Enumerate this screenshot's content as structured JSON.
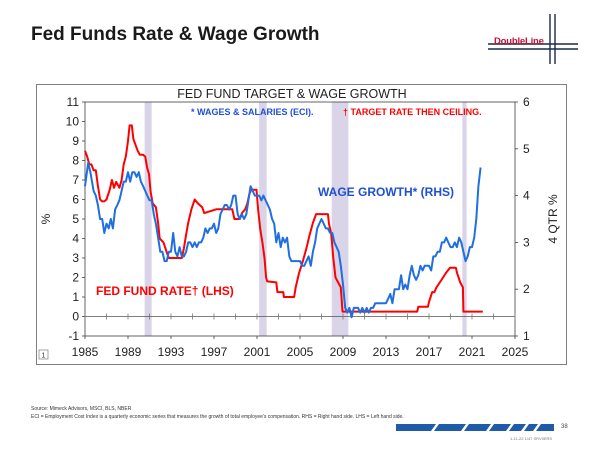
{
  "slide": {
    "title": "Fed Funds Rate & Wage Growth",
    "logo": "DoubleLine",
    "source": "Source: Mimeck Advisors, MSCI, BLS, NBER",
    "note": "ECI = Employment Cost Index is a quarterly economic series that measures the growth of total employee's compensation. RHS = Right hand side. LHS = Left hand side.",
    "page_number": "38",
    "date_code": "1-11-22 1/47 SRVIIERS",
    "box_number": "1"
  },
  "colors": {
    "fed": "#ff0000",
    "wage": "#1f6fe0",
    "recession": "#d9d4e7",
    "logo_red": "#c8102e",
    "footer_blue": "#1f5ba8",
    "text_blue": "#1e4fd6"
  },
  "chart_data": {
    "type": "line",
    "title": "FED FUND TARGET & WAGE GROWTH",
    "subtitle_wages": "* WAGES & SALARIES (ECI).",
    "subtitle_target": "† TARGET RATE THEN CEILING.",
    "ylabel": "%",
    "y2label": "4 QTR %",
    "ylim": [
      -1,
      11
    ],
    "y2lim": [
      1,
      6
    ],
    "xlim": [
      1985,
      2025
    ],
    "x_ticks": [
      "1985",
      "1989",
      "1993",
      "1997",
      "2001",
      "2005",
      "2009",
      "2013",
      "2017",
      "2021",
      "2025"
    ],
    "y_ticks": [
      "-1",
      "0",
      "1",
      "2",
      "3",
      "4",
      "5",
      "6",
      "7",
      "8",
      "9",
      "10",
      "11"
    ],
    "y2_ticks": [
      "1",
      "2",
      "3",
      "4",
      "5",
      "6"
    ],
    "recessions": [
      [
        1990.55,
        1991.2
      ],
      [
        2001.2,
        2001.9
      ],
      [
        2007.95,
        2009.5
      ],
      [
        2020.1,
        2020.5
      ]
    ],
    "series": [
      {
        "name": "FED FUND RATE† (LHS)",
        "axis": "left",
        "points": [
          [
            1985.0,
            8.5
          ],
          [
            1985.2,
            8.2
          ],
          [
            1985.4,
            7.8
          ],
          [
            1985.6,
            7.8
          ],
          [
            1985.8,
            7.5
          ],
          [
            1986.0,
            7.5
          ],
          [
            1986.2,
            6.7
          ],
          [
            1986.4,
            6.0
          ],
          [
            1986.6,
            5.9
          ],
          [
            1986.8,
            5.9
          ],
          [
            1987.0,
            6.0
          ],
          [
            1987.3,
            6.5
          ],
          [
            1987.5,
            7.0
          ],
          [
            1987.7,
            6.6
          ],
          [
            1987.9,
            6.9
          ],
          [
            1988.2,
            6.6
          ],
          [
            1988.4,
            7.0
          ],
          [
            1988.6,
            7.8
          ],
          [
            1988.8,
            8.2
          ],
          [
            1989.0,
            9.0
          ],
          [
            1989.15,
            9.8
          ],
          [
            1989.35,
            9.8
          ],
          [
            1989.5,
            9.1
          ],
          [
            1989.7,
            8.8
          ],
          [
            1989.9,
            8.5
          ],
          [
            1990.1,
            8.3
          ],
          [
            1990.4,
            8.3
          ],
          [
            1990.6,
            8.2
          ],
          [
            1990.8,
            7.6
          ],
          [
            1990.95,
            7.3
          ],
          [
            1991.1,
            6.4
          ],
          [
            1991.3,
            5.8
          ],
          [
            1991.6,
            5.6
          ],
          [
            1991.8,
            4.8
          ],
          [
            1991.95,
            4.0
          ],
          [
            1992.3,
            3.8
          ],
          [
            1992.6,
            3.3
          ],
          [
            1992.8,
            3.0
          ],
          [
            1993.0,
            3.0
          ],
          [
            1994.0,
            3.0
          ],
          [
            1994.2,
            3.5
          ],
          [
            1994.4,
            4.2
          ],
          [
            1994.6,
            4.8
          ],
          [
            1994.9,
            5.5
          ],
          [
            1995.2,
            6.0
          ],
          [
            1995.5,
            5.8
          ],
          [
            1995.9,
            5.6
          ],
          [
            1996.1,
            5.3
          ],
          [
            1997.2,
            5.5
          ],
          [
            1998.7,
            5.5
          ],
          [
            1998.9,
            5.0
          ],
          [
            1999.4,
            5.0
          ],
          [
            1999.6,
            5.3
          ],
          [
            1999.9,
            5.5
          ],
          [
            2000.1,
            5.8
          ],
          [
            2000.3,
            6.3
          ],
          [
            2000.45,
            6.5
          ],
          [
            2000.95,
            6.5
          ],
          [
            2001.1,
            5.5
          ],
          [
            2001.3,
            4.5
          ],
          [
            2001.5,
            3.8
          ],
          [
            2001.7,
            3.0
          ],
          [
            2001.85,
            2.0
          ],
          [
            2001.95,
            1.8
          ],
          [
            2002.8,
            1.75
          ],
          [
            2002.9,
            1.25
          ],
          [
            2003.45,
            1.25
          ],
          [
            2003.5,
            1.0
          ],
          [
            2004.45,
            1.0
          ],
          [
            2004.6,
            1.5
          ],
          [
            2004.9,
            2.2
          ],
          [
            2005.3,
            2.9
          ],
          [
            2005.6,
            3.5
          ],
          [
            2005.9,
            4.2
          ],
          [
            2006.2,
            4.8
          ],
          [
            2006.5,
            5.25
          ],
          [
            2007.6,
            5.25
          ],
          [
            2007.7,
            4.75
          ],
          [
            2007.9,
            4.25
          ],
          [
            2008.1,
            3.0
          ],
          [
            2008.3,
            2.0
          ],
          [
            2008.8,
            1.5
          ],
          [
            2008.95,
            0.25
          ],
          [
            2015.9,
            0.25
          ],
          [
            2016.0,
            0.5
          ],
          [
            2016.9,
            0.5
          ],
          [
            2017.0,
            0.75
          ],
          [
            2017.3,
            1.25
          ],
          [
            2017.5,
            1.25
          ],
          [
            2017.7,
            1.5
          ],
          [
            2018.0,
            1.75
          ],
          [
            2018.3,
            2.0
          ],
          [
            2018.6,
            2.25
          ],
          [
            2018.95,
            2.5
          ],
          [
            2019.5,
            2.5
          ],
          [
            2019.6,
            2.25
          ],
          [
            2019.75,
            2.0
          ],
          [
            2019.9,
            1.75
          ],
          [
            2020.15,
            1.5
          ],
          [
            2020.2,
            0.25
          ],
          [
            2022.0,
            0.25
          ]
        ]
      },
      {
        "name": "WAGE GROWTH* (RHS)",
        "axis": "right",
        "points": [
          [
            1985.0,
            4.2
          ],
          [
            1985.3,
            4.7
          ],
          [
            1985.5,
            4.5
          ],
          [
            1985.8,
            4.1
          ],
          [
            1986.0,
            4.0
          ],
          [
            1986.2,
            3.8
          ],
          [
            1986.4,
            3.5
          ],
          [
            1986.6,
            3.5
          ],
          [
            1986.8,
            3.2
          ],
          [
            1987.0,
            3.4
          ],
          [
            1987.2,
            3.3
          ],
          [
            1987.4,
            3.5
          ],
          [
            1987.6,
            3.3
          ],
          [
            1987.8,
            3.7
          ],
          [
            1988.0,
            3.8
          ],
          [
            1988.2,
            3.9
          ],
          [
            1988.4,
            4.1
          ],
          [
            1988.6,
            4.3
          ],
          [
            1988.8,
            4.3
          ],
          [
            1989.0,
            4.5
          ],
          [
            1989.2,
            4.3
          ],
          [
            1989.4,
            4.5
          ],
          [
            1989.6,
            4.5
          ],
          [
            1989.8,
            4.4
          ],
          [
            1990.0,
            4.5
          ],
          [
            1990.2,
            4.3
          ],
          [
            1990.4,
            4.2
          ],
          [
            1990.6,
            4.1
          ],
          [
            1990.8,
            4.0
          ],
          [
            1991.0,
            3.9
          ],
          [
            1991.2,
            3.9
          ],
          [
            1991.4,
            3.6
          ],
          [
            1991.6,
            3.4
          ],
          [
            1991.8,
            3.1
          ],
          [
            1992.0,
            2.8
          ],
          [
            1992.2,
            2.8
          ],
          [
            1992.4,
            2.6
          ],
          [
            1992.6,
            2.6
          ],
          [
            1992.8,
            2.8
          ],
          [
            1993.0,
            2.8
          ],
          [
            1993.2,
            3.2
          ],
          [
            1993.4,
            2.8
          ],
          [
            1993.6,
            2.7
          ],
          [
            1993.8,
            2.9
          ],
          [
            1994.0,
            2.7
          ],
          [
            1994.2,
            2.7
          ],
          [
            1994.4,
            2.8
          ],
          [
            1994.6,
            3.0
          ],
          [
            1994.8,
            3.0
          ],
          [
            1995.0,
            2.9
          ],
          [
            1995.2,
            3.0
          ],
          [
            1995.4,
            2.9
          ],
          [
            1995.6,
            3.0
          ],
          [
            1995.8,
            3.0
          ],
          [
            1996.0,
            3.1
          ],
          [
            1996.2,
            3.3
          ],
          [
            1996.4,
            3.2
          ],
          [
            1996.6,
            3.3
          ],
          [
            1996.8,
            3.3
          ],
          [
            1997.0,
            3.4
          ],
          [
            1997.2,
            3.2
          ],
          [
            1997.4,
            3.3
          ],
          [
            1997.6,
            3.6
          ],
          [
            1997.8,
            3.7
          ],
          [
            1998.0,
            3.8
          ],
          [
            1998.2,
            3.8
          ],
          [
            1998.4,
            3.7
          ],
          [
            1998.6,
            3.8
          ],
          [
            1998.8,
            4.0
          ],
          [
            1999.0,
            4.0
          ],
          [
            1999.2,
            3.6
          ],
          [
            1999.4,
            3.5
          ],
          [
            1999.6,
            3.6
          ],
          [
            1999.8,
            3.5
          ],
          [
            2000.0,
            3.6
          ],
          [
            2000.2,
            3.9
          ],
          [
            2000.4,
            4.2
          ],
          [
            2000.6,
            4.1
          ],
          [
            2000.8,
            4.0
          ],
          [
            2001.0,
            4.0
          ],
          [
            2001.2,
            4.0
          ],
          [
            2001.4,
            3.9
          ],
          [
            2001.6,
            4.0
          ],
          [
            2001.8,
            3.9
          ],
          [
            2002.0,
            3.8
          ],
          [
            2002.2,
            3.7
          ],
          [
            2002.4,
            3.5
          ],
          [
            2002.6,
            3.4
          ],
          [
            2002.8,
            3.0
          ],
          [
            2003.0,
            3.2
          ],
          [
            2003.2,
            2.9
          ],
          [
            2003.4,
            3.1
          ],
          [
            2003.6,
            3.0
          ],
          [
            2003.8,
            3.1
          ],
          [
            2004.0,
            2.7
          ],
          [
            2004.2,
            2.6
          ],
          [
            2004.4,
            2.6
          ],
          [
            2004.6,
            2.6
          ],
          [
            2004.8,
            2.6
          ],
          [
            2005.0,
            2.6
          ],
          [
            2005.2,
            2.5
          ],
          [
            2005.4,
            2.5
          ],
          [
            2005.6,
            2.6
          ],
          [
            2005.8,
            2.7
          ],
          [
            2006.0,
            2.5
          ],
          [
            2006.2,
            2.8
          ],
          [
            2006.4,
            3.0
          ],
          [
            2006.6,
            3.3
          ],
          [
            2006.8,
            3.4
          ],
          [
            2007.0,
            3.5
          ],
          [
            2007.2,
            3.4
          ],
          [
            2007.4,
            3.3
          ],
          [
            2007.6,
            3.3
          ],
          [
            2007.8,
            3.2
          ],
          [
            2008.0,
            3.2
          ],
          [
            2008.2,
            3.0
          ],
          [
            2008.4,
            2.9
          ],
          [
            2008.6,
            2.8
          ],
          [
            2008.8,
            2.5
          ],
          [
            2009.0,
            2.1
          ],
          [
            2009.2,
            1.6
          ],
          [
            2009.4,
            1.5
          ],
          [
            2009.6,
            1.6
          ],
          [
            2009.8,
            1.4
          ],
          [
            2010.0,
            1.6
          ],
          [
            2010.2,
            1.6
          ],
          [
            2010.4,
            1.6
          ],
          [
            2010.6,
            1.5
          ],
          [
            2010.8,
            1.6
          ],
          [
            2011.0,
            1.5
          ],
          [
            2011.2,
            1.6
          ],
          [
            2011.4,
            1.5
          ],
          [
            2011.6,
            1.6
          ],
          [
            2011.8,
            1.6
          ],
          [
            2012.0,
            1.7
          ],
          [
            2012.2,
            1.7
          ],
          [
            2012.4,
            1.7
          ],
          [
            2012.6,
            1.7
          ],
          [
            2012.8,
            1.7
          ],
          [
            2013.0,
            1.7
          ],
          [
            2013.2,
            1.8
          ],
          [
            2013.4,
            1.9
          ],
          [
            2013.6,
            1.7
          ],
          [
            2013.8,
            2.0
          ],
          [
            2014.0,
            2.0
          ],
          [
            2014.2,
            2.0
          ],
          [
            2014.4,
            2.3
          ],
          [
            2014.6,
            2.0
          ],
          [
            2014.8,
            2.1
          ],
          [
            2015.0,
            2.0
          ],
          [
            2015.2,
            2.3
          ],
          [
            2015.4,
            2.5
          ],
          [
            2015.6,
            2.3
          ],
          [
            2015.8,
            2.2
          ],
          [
            2016.0,
            2.3
          ],
          [
            2016.2,
            2.5
          ],
          [
            2016.4,
            2.4
          ],
          [
            2016.6,
            2.5
          ],
          [
            2016.8,
            2.5
          ],
          [
            2017.0,
            2.5
          ],
          [
            2017.2,
            2.4
          ],
          [
            2017.4,
            2.7
          ],
          [
            2017.6,
            2.7
          ],
          [
            2017.8,
            2.8
          ],
          [
            2018.0,
            2.8
          ],
          [
            2018.2,
            3.0
          ],
          [
            2018.4,
            3.0
          ],
          [
            2018.6,
            3.1
          ],
          [
            2018.8,
            3.0
          ],
          [
            2019.0,
            2.9
          ],
          [
            2019.2,
            2.9
          ],
          [
            2019.4,
            3.0
          ],
          [
            2019.6,
            2.9
          ],
          [
            2019.8,
            3.1
          ],
          [
            2020.0,
            3.0
          ],
          [
            2020.2,
            2.8
          ],
          [
            2020.4,
            2.6
          ],
          [
            2020.6,
            2.7
          ],
          [
            2020.8,
            2.9
          ],
          [
            2021.0,
            2.9
          ],
          [
            2021.2,
            3.1
          ],
          [
            2021.4,
            3.5
          ],
          [
            2021.6,
            4.2
          ],
          [
            2021.8,
            4.6
          ]
        ]
      }
    ],
    "annotations": [
      {
        "text": "FED FUND RATE† (LHS)",
        "color": "red",
        "near_x": 1993,
        "near_y": 1.5
      },
      {
        "text": "WAGE GROWTH* (RHS)",
        "color": "blue",
        "near_x": 2011,
        "near_y": 6.5
      }
    ]
  }
}
